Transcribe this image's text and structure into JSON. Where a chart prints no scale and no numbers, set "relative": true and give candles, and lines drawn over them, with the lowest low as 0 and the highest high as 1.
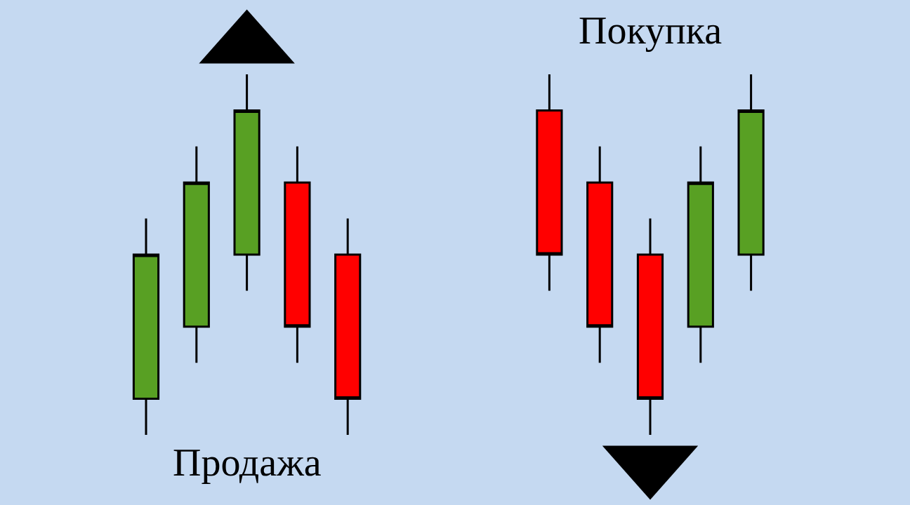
{
  "chart_data": {
    "type": "candlestick",
    "relative": true,
    "categories": [
      null,
      null,
      null,
      null,
      null,
      null,
      null,
      null,
      null,
      null,
      null,
      null,
      null
    ],
    "ohlc": [
      [
        0.1,
        0.6,
        0,
        0.5
      ],
      [
        0.3,
        0.8,
        0.2,
        0.7
      ],
      [
        0.5,
        1,
        0.4,
        0.9
      ],
      [
        0.7,
        0.8,
        0.2,
        0.3
      ],
      [
        0.5,
        0.6,
        0,
        0.1
      ],
      null,
      null,
      null,
      [
        0.9,
        1,
        0.4,
        0.5
      ],
      [
        0.7,
        0.8,
        0.2,
        0.3
      ],
      [
        0.5,
        0.6,
        0,
        0.1
      ],
      [
        0.3,
        0.8,
        0.2,
        0.7
      ],
      [
        0.5,
        1,
        0.4,
        0.9
      ]
    ],
    "colors": [
      "#58a023",
      "#58a023",
      "#58a023",
      "#ff0000",
      "#ff0000",
      null,
      null,
      null,
      "#ff0000",
      "#ff0000",
      "#ff0000",
      "#58a023",
      "#58a023"
    ],
    "annotations": [
      "Продажа",
      "Покупка"
    ]
  }
}
